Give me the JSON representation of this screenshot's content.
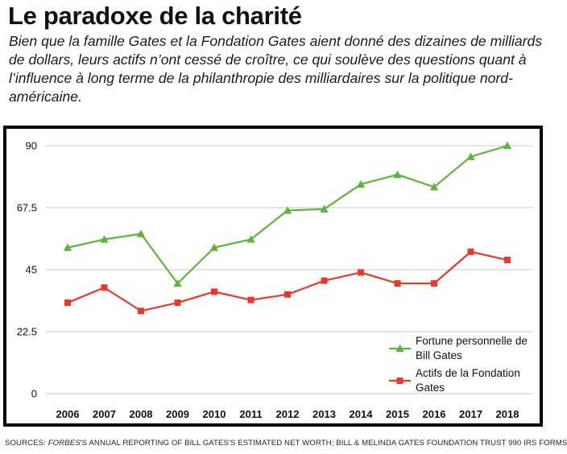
{
  "header": {
    "title": "Le paradoxe de la charité",
    "subtitle": "Bien que la famille Gates et la Fondation Gates aient donné des dizaines de milliards de dollars, leurs actifs n’ont cessé de croître, ce qui soulève des questions quant à l’influence à long terme de la philanthropie des milliardaires sur la politique nord-américaine."
  },
  "source": {
    "prefix": "SOURCES: ",
    "publication": "FORBES",
    "rest": "'S ANNUAL REPORTING OF BILL GATES'S ESTIMATED NET WORTH; BILL & MELINDA GATES FOUNDATION TRUST 990 IRS FORMS"
  },
  "colors": {
    "green": "#5cb53b",
    "red": "#e8392a",
    "grid": "#c8c8c8"
  },
  "chart_data": {
    "type": "line",
    "title": "",
    "xlabel": "",
    "ylabel": "",
    "x": [
      "2006",
      "2007",
      "2008",
      "2009",
      "2010",
      "2011",
      "2012",
      "2013",
      "2014",
      "2015",
      "2016",
      "2017",
      "2018"
    ],
    "y_ticks": [
      "0",
      "22.5",
      "45",
      "67.5",
      "90"
    ],
    "ylim": [
      0,
      90
    ],
    "grid": "horizontal",
    "legend_position": "bottom-right",
    "series": [
      {
        "name": "Fortune personnelle de Bill Gates",
        "color": "#5cb53b",
        "marker": "triangle",
        "values": [
          53,
          56,
          58,
          40,
          53,
          56,
          66.5,
          67,
          76,
          79.5,
          75,
          86,
          90
        ],
        "legend_lines": [
          "Fortune personnelle de",
          "Bill Gates"
        ]
      },
      {
        "name": "Actifs de la Fondation Gates",
        "color": "#e8392a",
        "marker": "square",
        "values": [
          33,
          38.5,
          30,
          33,
          37,
          34,
          36,
          41,
          44,
          40,
          40,
          51.5,
          48.5
        ],
        "legend_lines": [
          "Actifs de la Fondation",
          "Gates"
        ]
      }
    ]
  }
}
